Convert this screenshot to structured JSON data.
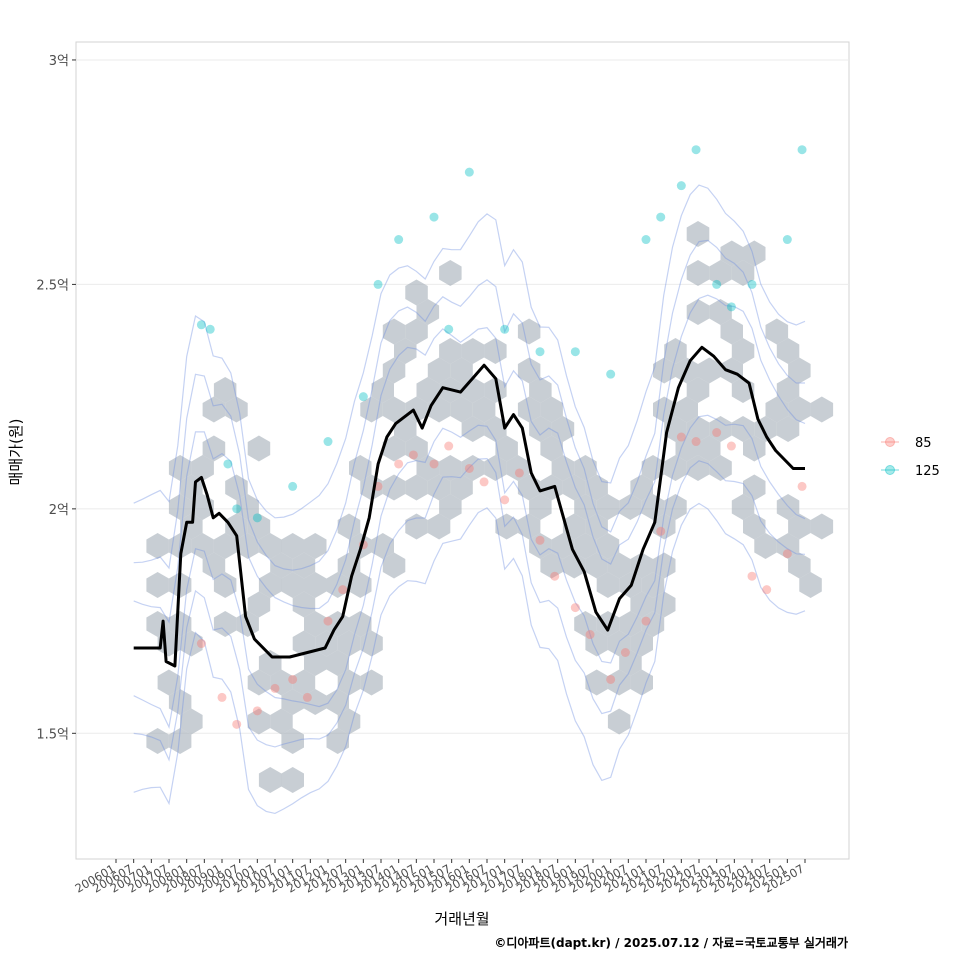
{
  "chart_data": {
    "type": "line",
    "title": "",
    "xlabel": "거래년월",
    "ylabel": "매매가(원)",
    "caption": "©디아파트(dapt.kr) / 2025.07.12 / 자료=국토교통부 실거래가",
    "x_range": [
      "2006-01",
      "2025-07"
    ],
    "ylim": [
      1.22,
      3.04
    ],
    "y_unit": "억",
    "grid": true,
    "legend_position": "right",
    "y_ticks": [
      {
        "value": 1.5,
        "label": "1.5억"
      },
      {
        "value": 2.0,
        "label": "2억"
      },
      {
        "value": 2.5,
        "label": "2.5억"
      },
      {
        "value": 3.0,
        "label": "3억"
      }
    ],
    "x_ticks": [
      "200601",
      "200607",
      "200701",
      "200707",
      "200801",
      "200807",
      "200901",
      "200907",
      "201001",
      "201007",
      "201101",
      "201107",
      "201201",
      "201207",
      "201301",
      "201307",
      "201401",
      "201407",
      "201501",
      "201507",
      "201601",
      "201607",
      "201701",
      "201707",
      "201801",
      "201807",
      "201901",
      "201907",
      "202001",
      "202007",
      "202101",
      "202107",
      "202201",
      "202207",
      "202301",
      "202307",
      "202401",
      "202407",
      "202501",
      "202507"
    ],
    "legend": [
      {
        "name": "85",
        "color": "#F8766D"
      },
      {
        "name": "125",
        "color": "#00BFC4"
      }
    ],
    "series": [
      {
        "name": "moving-average",
        "color": "#000000",
        "points": [
          [
            "2006-07",
            1.69
          ],
          [
            "2007-04",
            1.69
          ],
          [
            "2007-05",
            1.75
          ],
          [
            "2007-06",
            1.66
          ],
          [
            "2007-09",
            1.65
          ],
          [
            "2007-11",
            1.9
          ],
          [
            "2008-01",
            1.97
          ],
          [
            "2008-03",
            1.97
          ],
          [
            "2008-04",
            2.06
          ],
          [
            "2008-06",
            2.07
          ],
          [
            "2008-08",
            2.03
          ],
          [
            "2008-10",
            1.98
          ],
          [
            "2008-12",
            1.99
          ],
          [
            "2009-03",
            1.97
          ],
          [
            "2009-06",
            1.94
          ],
          [
            "2009-09",
            1.76
          ],
          [
            "2009-12",
            1.71
          ],
          [
            "2010-06",
            1.67
          ],
          [
            "2010-12",
            1.67
          ],
          [
            "2011-06",
            1.68
          ],
          [
            "2011-12",
            1.69
          ],
          [
            "2012-03",
            1.73
          ],
          [
            "2012-06",
            1.76
          ],
          [
            "2012-09",
            1.85
          ],
          [
            "2012-12",
            1.91
          ],
          [
            "2013-03",
            1.98
          ],
          [
            "2013-06",
            2.1
          ],
          [
            "2013-09",
            2.16
          ],
          [
            "2013-12",
            2.19
          ],
          [
            "2014-06",
            2.22
          ],
          [
            "2014-09",
            2.18
          ],
          [
            "2014-12",
            2.23
          ],
          [
            "2015-04",
            2.27
          ],
          [
            "2015-10",
            2.26
          ],
          [
            "2016-02",
            2.29
          ],
          [
            "2016-06",
            2.32
          ],
          [
            "2016-10",
            2.29
          ],
          [
            "2017-01",
            2.18
          ],
          [
            "2017-04",
            2.21
          ],
          [
            "2017-07",
            2.18
          ],
          [
            "2017-10",
            2.08
          ],
          [
            "2018-01",
            2.04
          ],
          [
            "2018-06",
            2.05
          ],
          [
            "2018-12",
            1.91
          ],
          [
            "2019-04",
            1.86
          ],
          [
            "2019-08",
            1.77
          ],
          [
            "2019-12",
            1.73
          ],
          [
            "2020-04",
            1.8
          ],
          [
            "2020-08",
            1.83
          ],
          [
            "2020-12",
            1.91
          ],
          [
            "2021-04",
            1.97
          ],
          [
            "2021-08",
            2.17
          ],
          [
            "2021-12",
            2.27
          ],
          [
            "2022-04",
            2.33
          ],
          [
            "2022-08",
            2.36
          ],
          [
            "2022-12",
            2.34
          ],
          [
            "2023-04",
            2.31
          ],
          [
            "2023-08",
            2.3
          ],
          [
            "2023-12",
            2.28
          ],
          [
            "2024-03",
            2.2
          ],
          [
            "2024-06",
            2.16
          ],
          [
            "2024-09",
            2.13
          ],
          [
            "2024-12",
            2.11
          ],
          [
            "2025-03",
            2.09
          ],
          [
            "2025-07",
            2.09
          ]
        ]
      }
    ],
    "scatter": {
      "85": [
        [
          "2008-06",
          1.7
        ],
        [
          "2009-01",
          1.58
        ],
        [
          "2009-06",
          1.52
        ],
        [
          "2010-01",
          1.55
        ],
        [
          "2010-07",
          1.6
        ],
        [
          "2011-01",
          1.62
        ],
        [
          "2011-06",
          1.58
        ],
        [
          "2012-01",
          1.75
        ],
        [
          "2012-06",
          1.82
        ],
        [
          "2013-01",
          1.92
        ],
        [
          "2013-06",
          2.05
        ],
        [
          "2014-01",
          2.1
        ],
        [
          "2014-06",
          2.12
        ],
        [
          "2015-01",
          2.1
        ],
        [
          "2015-06",
          2.14
        ],
        [
          "2016-01",
          2.09
        ],
        [
          "2016-06",
          2.06
        ],
        [
          "2017-01",
          2.02
        ],
        [
          "2017-06",
          2.08
        ],
        [
          "2018-01",
          1.93
        ],
        [
          "2018-06",
          1.85
        ],
        [
          "2019-01",
          1.78
        ],
        [
          "2019-06",
          1.72
        ],
        [
          "2020-01",
          1.62
        ],
        [
          "2020-06",
          1.68
        ],
        [
          "2021-01",
          1.75
        ],
        [
          "2021-06",
          1.95
        ],
        [
          "2022-01",
          2.16
        ],
        [
          "2022-06",
          2.15
        ],
        [
          "2023-01",
          2.17
        ],
        [
          "2023-06",
          2.14
        ],
        [
          "2024-01",
          1.85
        ],
        [
          "2024-06",
          1.82
        ],
        [
          "2025-01",
          1.9
        ],
        [
          "2025-06",
          2.05
        ]
      ],
      "125": [
        [
          "2008-06",
          2.41
        ],
        [
          "2008-09",
          2.4
        ],
        [
          "2009-03",
          2.1
        ],
        [
          "2009-06",
          2.0
        ],
        [
          "2010-01",
          1.98
        ],
        [
          "2011-01",
          2.05
        ],
        [
          "2012-01",
          2.15
        ],
        [
          "2013-01",
          2.25
        ],
        [
          "2013-06",
          2.5
        ],
        [
          "2014-01",
          2.6
        ],
        [
          "2015-01",
          2.65
        ],
        [
          "2015-06",
          2.4
        ],
        [
          "2016-01",
          2.75
        ],
        [
          "2017-01",
          2.4
        ],
        [
          "2018-01",
          2.35
        ],
        [
          "2019-01",
          2.35
        ],
        [
          "2020-01",
          2.3
        ],
        [
          "2021-01",
          2.6
        ],
        [
          "2021-06",
          2.65
        ],
        [
          "2022-01",
          2.72
        ],
        [
          "2022-06",
          2.8
        ],
        [
          "2023-01",
          2.5
        ],
        [
          "2023-06",
          2.45
        ],
        [
          "2024-01",
          2.5
        ],
        [
          "2025-01",
          2.6
        ],
        [
          "2025-06",
          2.8
        ]
      ]
    }
  }
}
